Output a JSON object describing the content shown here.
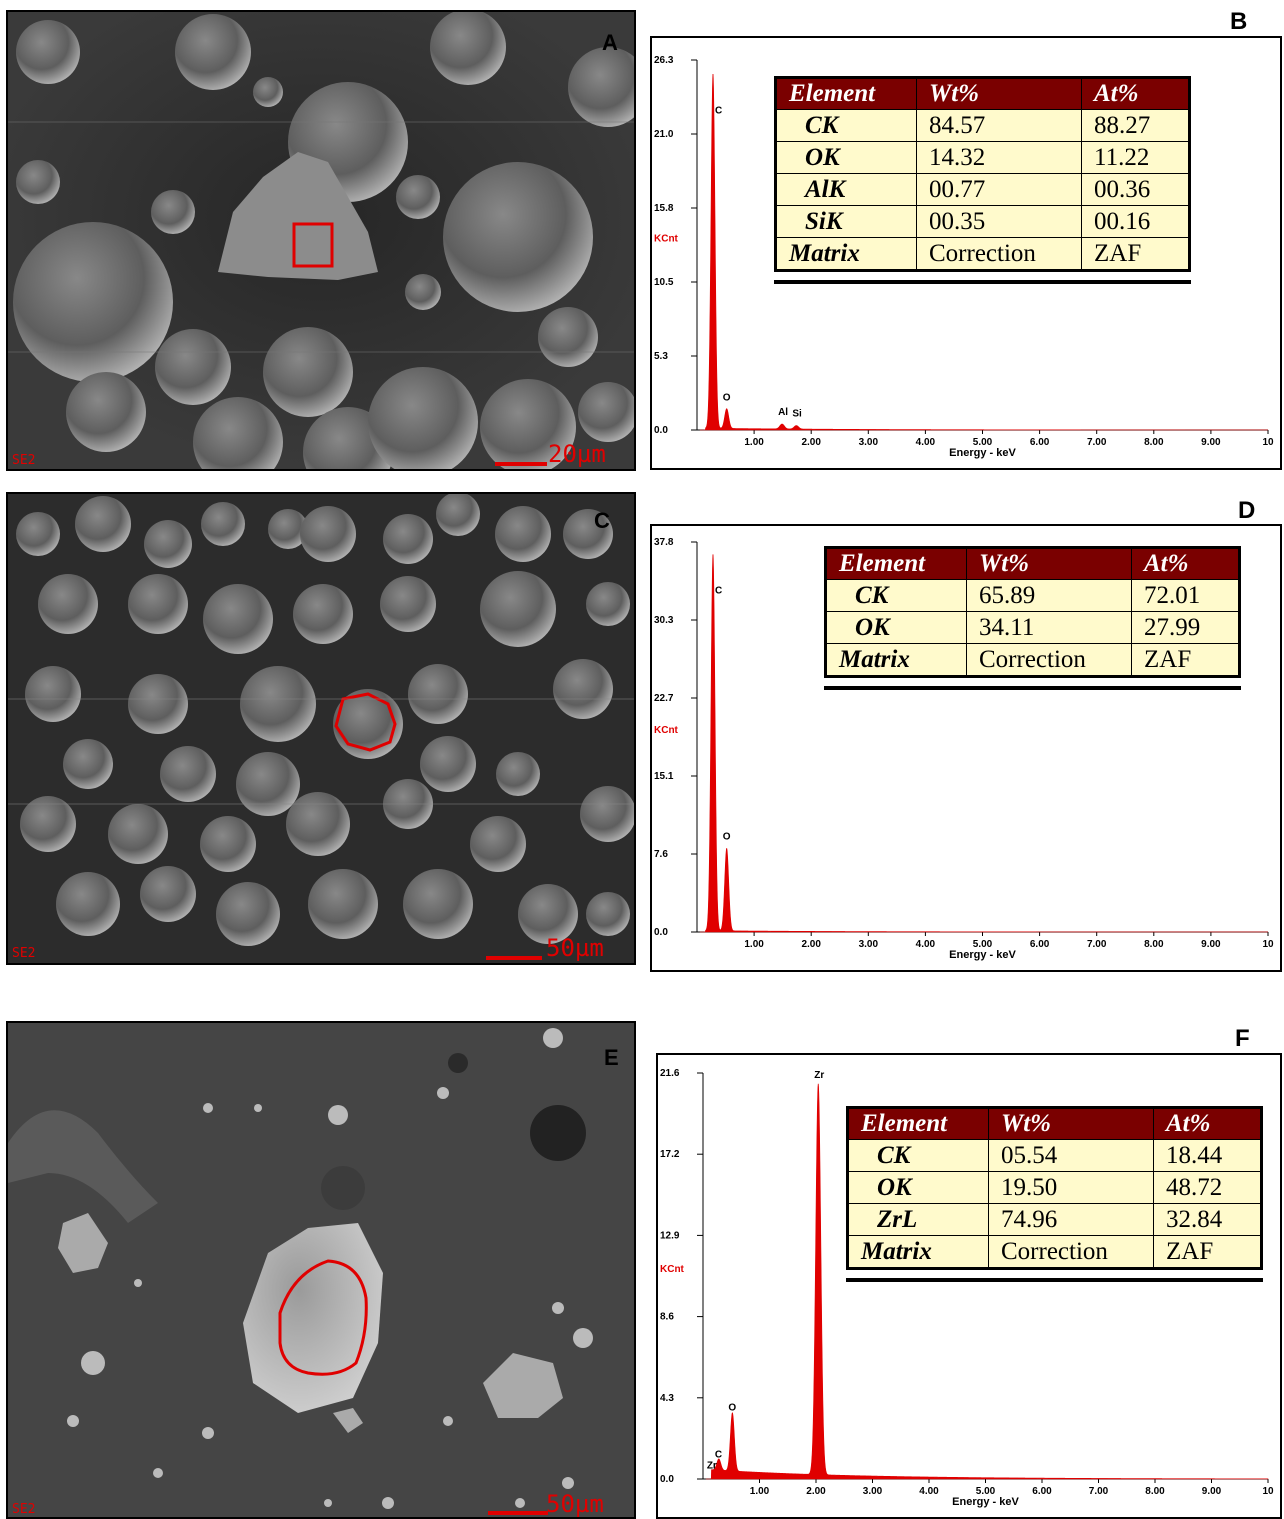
{
  "panels": {
    "A": {
      "letter": "A",
      "corner": "SE2",
      "scale": "20µm"
    },
    "B": {
      "letter": "B"
    },
    "C": {
      "letter": "C",
      "corner": "SE2",
      "scale": "50µm"
    },
    "D": {
      "letter": "D"
    },
    "E": {
      "letter": "E",
      "corner": "SE2",
      "scale": "50µm"
    },
    "F": {
      "letter": "F"
    }
  },
  "colors": {
    "spectrum": "#e00000",
    "table_header": "#7a0000",
    "table_body": "#fffacc"
  },
  "tables": {
    "B": {
      "headers": [
        "Element",
        "Wt%",
        "At%"
      ],
      "rows": [
        [
          "CK",
          "84.57",
          "88.27"
        ],
        [
          "OK",
          "14.32",
          "11.22"
        ],
        [
          "AlK",
          "00.77",
          "00.36"
        ],
        [
          "SiK",
          "00.35",
          "00.16"
        ]
      ],
      "matrix": [
        "Matrix",
        "Correction",
        "ZAF"
      ]
    },
    "D": {
      "headers": [
        "Element",
        "Wt%",
        "At%"
      ],
      "rows": [
        [
          "CK",
          "65.89",
          "72.01"
        ],
        [
          "OK",
          "34.11",
          "27.99"
        ]
      ],
      "matrix": [
        "Matrix",
        "Correction",
        "ZAF"
      ]
    },
    "F": {
      "headers": [
        "Element",
        "Wt%",
        "At%"
      ],
      "rows": [
        [
          "CK",
          "05.54",
          "18.44"
        ],
        [
          "OK",
          "19.50",
          "48.72"
        ],
        [
          "ZrL",
          "74.96",
          "32.84"
        ]
      ],
      "matrix": [
        "Matrix",
        "Correction",
        "ZAF"
      ]
    }
  },
  "chart_data": [
    {
      "panel": "B",
      "type": "line",
      "ylabel": "KCnt",
      "xlabel": "Energy - keV",
      "yticks": [
        "0.0",
        "5.3",
        "10.5",
        "15.8",
        "21.0",
        "26.3"
      ],
      "xticks": [
        "1.00",
        "2.00",
        "3.00",
        "4.00",
        "5.00",
        "6.00",
        "7.00",
        "8.00",
        "9.00",
        "10"
      ],
      "xlim": [
        0,
        10
      ],
      "ylim": [
        0,
        26.3
      ],
      "peaks": [
        {
          "label": "C",
          "x": 0.28,
          "y": 25.2
        },
        {
          "label": "O",
          "x": 0.52,
          "y": 1.4
        },
        {
          "label": "Al",
          "x": 1.49,
          "y": 0.35
        },
        {
          "label": "Si",
          "x": 1.74,
          "y": 0.25
        }
      ]
    },
    {
      "panel": "D",
      "type": "line",
      "ylabel": "KCnt",
      "xlabel": "Energy - keV",
      "yticks": [
        "0.0",
        "7.6",
        "15.1",
        "22.7",
        "30.3",
        "37.8"
      ],
      "xticks": [
        "1.00",
        "2.00",
        "3.00",
        "4.00",
        "5.00",
        "6.00",
        "7.00",
        "8.00",
        "9.00",
        "10"
      ],
      "xlim": [
        0,
        10
      ],
      "ylim": [
        0,
        37.8
      ],
      "peaks": [
        {
          "label": "C",
          "x": 0.28,
          "y": 36.5
        },
        {
          "label": "O",
          "x": 0.52,
          "y": 8.0
        }
      ]
    },
    {
      "panel": "F",
      "type": "line",
      "ylabel": "KCnt",
      "xlabel": "Energy - keV",
      "yticks": [
        "0.0",
        "4.3",
        "8.6",
        "12.9",
        "17.2",
        "21.6"
      ],
      "xticks": [
        "1.00",
        "2.00",
        "3.00",
        "4.00",
        "5.00",
        "6.00",
        "7.00",
        "8.00",
        "9.00",
        "10"
      ],
      "xlim": [
        0,
        10
      ],
      "ylim": [
        0,
        21.6
      ],
      "peaks": [
        {
          "label": "C",
          "x": 0.28,
          "y": 0.6,
          "alt": "Zr"
        },
        {
          "label": "O",
          "x": 0.52,
          "y": 3.1
        },
        {
          "label": "Zr",
          "x": 2.04,
          "y": 20.8
        }
      ]
    }
  ]
}
